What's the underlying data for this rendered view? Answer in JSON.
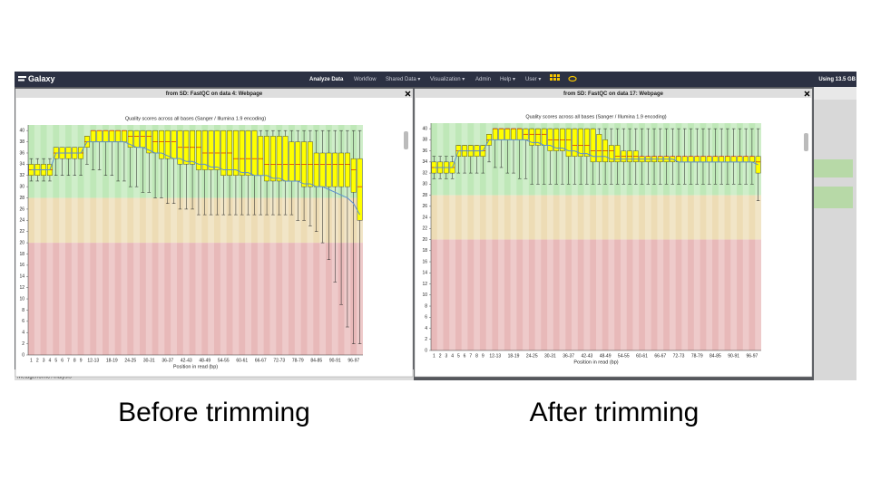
{
  "header": {
    "brand": "Galaxy",
    "nav": [
      "Analyze Data",
      "Workflow",
      "Shared Data ▾",
      "Visualization ▾",
      "Admin",
      "Help ▾",
      "User ▾"
    ],
    "usage": "Using 13.5 GB"
  },
  "windows": [
    {
      "title": "from SD: FastQC on data 4: Webpage"
    },
    {
      "title": "from SD: FastQC on data 17: Webpage"
    }
  ],
  "side_panel": {
    "tool": "Metagenomic Analysis"
  },
  "captions": [
    "Before trimming",
    "After trimming"
  ],
  "chart_data": [
    {
      "type": "box",
      "title": "Quality scores across all bases (Sanger / Illumina 1.9 encoding)",
      "xlabel": "Position in read (bp)",
      "categories": [
        "1",
        "2",
        "3",
        "4",
        "5",
        "6",
        "7",
        "8",
        "9",
        null,
        "12-13",
        null,
        null,
        "18-19",
        null,
        null,
        "24-25",
        null,
        null,
        "30-31",
        null,
        null,
        "36-37",
        null,
        null,
        "42-43",
        null,
        null,
        "48-49",
        null,
        null,
        "54-55",
        null,
        null,
        "60-61",
        null,
        null,
        "66-67",
        null,
        null,
        "72-73",
        null,
        null,
        "78-79",
        null,
        null,
        "84-85",
        null,
        null,
        "90-91",
        null,
        null,
        "96-97",
        null
      ],
      "low": [
        31,
        31,
        31,
        31,
        32,
        32,
        32,
        32,
        32,
        34,
        33,
        33,
        32,
        32,
        31,
        31,
        30,
        30,
        29,
        29,
        28,
        28,
        27,
        27,
        26,
        26,
        26,
        25,
        25,
        25,
        25,
        25,
        25,
        25,
        25,
        25,
        25,
        25,
        25,
        25,
        25,
        25,
        25,
        24,
        24,
        23,
        22,
        20,
        17,
        13,
        9,
        5,
        2,
        2
      ],
      "q1": [
        32,
        32,
        32,
        32,
        35,
        35,
        35,
        35,
        35,
        37,
        38,
        38,
        38,
        38,
        38,
        38,
        37,
        37,
        37,
        36,
        36,
        35,
        35,
        35,
        34,
        34,
        34,
        33,
        33,
        33,
        33,
        32,
        32,
        32,
        32,
        32,
        32,
        32,
        31,
        31,
        31,
        31,
        31,
        31,
        30,
        30,
        30,
        30,
        30,
        30,
        30,
        30,
        29,
        24
      ],
      "median": [
        33,
        33,
        33,
        33,
        36,
        36,
        36,
        36,
        36,
        38,
        40,
        40,
        40,
        40,
        40,
        40,
        39,
        39,
        39,
        39,
        38,
        38,
        38,
        38,
        37,
        37,
        37,
        37,
        36,
        36,
        36,
        36,
        36,
        35,
        35,
        35,
        35,
        35,
        34,
        34,
        34,
        34,
        34,
        34,
        34,
        34,
        34,
        34,
        34,
        34,
        34,
        34,
        33,
        30
      ],
      "q3": [
        34,
        34,
        34,
        34,
        37,
        37,
        37,
        37,
        37,
        39,
        40,
        40,
        40,
        40,
        40,
        40,
        40,
        40,
        40,
        40,
        40,
        40,
        40,
        40,
        40,
        40,
        40,
        40,
        40,
        40,
        40,
        40,
        40,
        40,
        40,
        40,
        40,
        39,
        39,
        39,
        39,
        39,
        38,
        38,
        38,
        38,
        36,
        36,
        36,
        36,
        36,
        36,
        35,
        35
      ],
      "high": [
        35,
        35,
        35,
        35,
        37,
        37,
        37,
        37,
        37,
        39,
        40,
        40,
        40,
        40,
        40,
        40,
        40,
        40,
        40,
        40,
        40,
        40,
        40,
        40,
        40,
        40,
        40,
        40,
        40,
        40,
        40,
        40,
        40,
        40,
        40,
        40,
        40,
        40,
        40,
        40,
        40,
        40,
        40,
        40,
        40,
        40,
        40,
        40,
        40,
        40,
        40,
        40,
        40,
        40
      ],
      "mean": [
        33,
        33,
        33,
        33,
        36,
        36,
        36,
        36,
        36,
        38,
        38,
        38,
        38,
        38,
        38,
        38,
        37.5,
        37,
        37,
        36.5,
        36,
        36,
        35.5,
        35,
        35,
        34.5,
        34.5,
        34,
        34,
        33.5,
        33.5,
        33,
        33,
        33,
        32.5,
        32.5,
        32,
        32,
        32,
        31.5,
        31.5,
        31,
        31,
        31,
        30.5,
        30.5,
        30,
        30,
        29.5,
        29,
        28.5,
        28,
        27,
        25
      ],
      "box_color": "#ffff00",
      "median_color": "#cc0000",
      "mean_color": "#5b8fd1",
      "zones": [
        {
          "from": 28,
          "to": 41,
          "color": "#bfe8b8"
        },
        {
          "from": 20,
          "to": 28,
          "color": "#eddcb5"
        },
        {
          "from": 0,
          "to": 20,
          "color": "#e8b9b9"
        }
      ],
      "ylim": [
        0,
        41
      ],
      "yticks": [
        0,
        2,
        4,
        6,
        8,
        10,
        12,
        14,
        16,
        18,
        20,
        22,
        24,
        26,
        28,
        30,
        32,
        34,
        36,
        38,
        40
      ]
    },
    {
      "type": "box",
      "title": "Quality scores across all bases (Sanger / Illumina 1.9 encoding)",
      "xlabel": "Position in read (bp)",
      "categories": [
        "1",
        "2",
        "3",
        "4",
        "5",
        "6",
        "7",
        "8",
        "9",
        null,
        "12-13",
        null,
        null,
        "18-19",
        null,
        null,
        "24-25",
        null,
        null,
        "30-31",
        null,
        null,
        "36-37",
        null,
        null,
        "42-43",
        null,
        null,
        "48-49",
        null,
        null,
        "54-55",
        null,
        null,
        "60-61",
        null,
        null,
        "66-67",
        null,
        null,
        "72-73",
        null,
        null,
        "78-79",
        null,
        null,
        "84-85",
        null,
        null,
        "90-91",
        null,
        null,
        "96-97",
        null
      ],
      "low": [
        31,
        31,
        31,
        31,
        32,
        32,
        32,
        32,
        32,
        34,
        33,
        33,
        32,
        32,
        31,
        31,
        30,
        30,
        30,
        30,
        30,
        30,
        30,
        30,
        30,
        30,
        30,
        30,
        30,
        30,
        30,
        30,
        30,
        30,
        30,
        30,
        30,
        30,
        30,
        30,
        30,
        30,
        30,
        30,
        30,
        30,
        30,
        30,
        30,
        30,
        30,
        30,
        30,
        27
      ],
      "q1": [
        32,
        32,
        32,
        32,
        35,
        35,
        35,
        35,
        35,
        37,
        38,
        38,
        38,
        38,
        38,
        38,
        37,
        37,
        37,
        36,
        36,
        36,
        35,
        35,
        35,
        35,
        34,
        34,
        34,
        34,
        34,
        34,
        34,
        34,
        34,
        34,
        34,
        34,
        34,
        34,
        34,
        34,
        34,
        34,
        34,
        34,
        34,
        34,
        34,
        34,
        34,
        34,
        34,
        32
      ],
      "median": [
        33,
        33,
        33,
        33,
        36,
        36,
        36,
        36,
        36,
        38,
        40,
        40,
        40,
        40,
        40,
        39,
        39,
        39,
        39,
        38,
        38,
        38,
        38,
        37,
        37,
        37,
        36,
        36,
        36,
        36,
        35,
        35,
        35,
        35,
        35,
        35,
        35,
        35,
        35,
        35,
        35,
        35,
        35,
        35,
        35,
        35,
        35,
        35,
        35,
        35,
        35,
        35,
        35,
        34
      ],
      "q3": [
        34,
        34,
        34,
        34,
        37,
        37,
        37,
        37,
        37,
        39,
        40,
        40,
        40,
        40,
        40,
        40,
        40,
        40,
        40,
        40,
        40,
        40,
        40,
        40,
        40,
        40,
        40,
        39,
        38,
        37,
        37,
        36,
        36,
        36,
        35,
        35,
        35,
        35,
        35,
        35,
        35,
        35,
        35,
        35,
        35,
        35,
        35,
        35,
        35,
        35,
        35,
        35,
        35,
        35
      ],
      "high": [
        35,
        35,
        35,
        35,
        37,
        37,
        37,
        37,
        37,
        39,
        40,
        40,
        40,
        40,
        40,
        40,
        40,
        40,
        40,
        40,
        40,
        40,
        40,
        40,
        40,
        40,
        40,
        40,
        40,
        40,
        40,
        40,
        40,
        40,
        40,
        40,
        40,
        40,
        40,
        40,
        40,
        40,
        40,
        40,
        40,
        40,
        40,
        40,
        40,
        40,
        40,
        40,
        40,
        40
      ],
      "mean": [
        33,
        33,
        33,
        33,
        36,
        36,
        36,
        36,
        36,
        38,
        38,
        38,
        38,
        38,
        38,
        38,
        37.5,
        37.5,
        37,
        37,
        36.5,
        36.5,
        36,
        36,
        35.5,
        35.5,
        35,
        35,
        35,
        34.5,
        34.5,
        34.5,
        34.5,
        34.5,
        34.5,
        34.5,
        34.5,
        34.5,
        34.5,
        34.5,
        34,
        34,
        34,
        34,
        34,
        34,
        34,
        34,
        34,
        34,
        34,
        34,
        34,
        33.5
      ],
      "box_color": "#ffff00",
      "median_color": "#cc0000",
      "mean_color": "#5b8fd1",
      "zones": [
        {
          "from": 28,
          "to": 41,
          "color": "#bfe8b8"
        },
        {
          "from": 20,
          "to": 28,
          "color": "#eddcb5"
        },
        {
          "from": 0,
          "to": 20,
          "color": "#e8b9b9"
        }
      ],
      "ylim": [
        0,
        41
      ],
      "yticks": [
        0,
        2,
        4,
        6,
        8,
        10,
        12,
        14,
        16,
        18,
        20,
        22,
        24,
        26,
        28,
        30,
        32,
        34,
        36,
        38,
        40
      ]
    }
  ]
}
